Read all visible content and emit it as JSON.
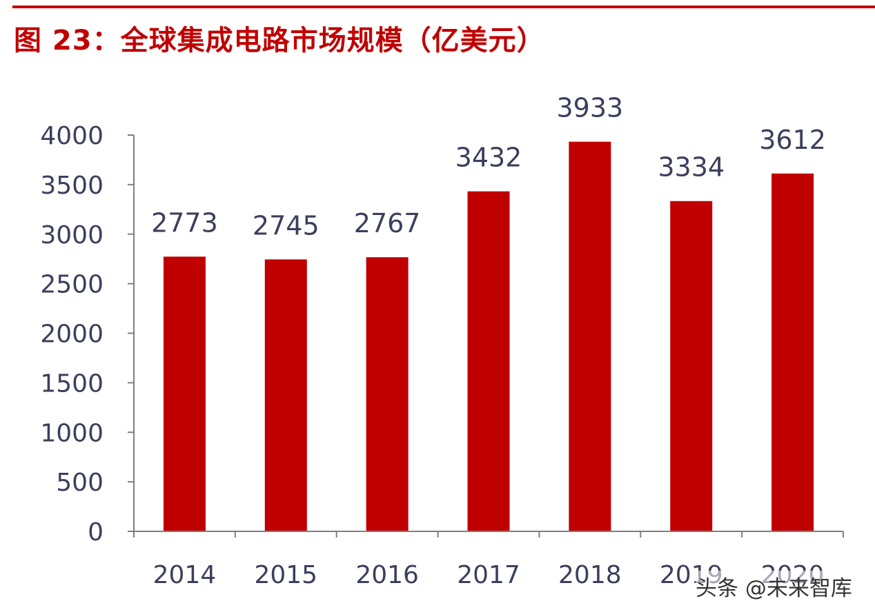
{
  "title": "图 23：全球集成电路市场规模（亿美元）",
  "watermark": "头条 @未来智库",
  "colors": {
    "accent": "#c00000",
    "bar": "#c00000",
    "axis_text": "#3b3f5c",
    "axis_line": "#7f7f7f"
  },
  "chart_data": {
    "type": "bar",
    "title": "图 23：全球集成电路市场规模（亿美元）",
    "categories": [
      "2014",
      "2015",
      "2016",
      "2017",
      "2018",
      "2019",
      "2020"
    ],
    "values": [
      2773,
      2745,
      2767,
      3432,
      3933,
      3334,
      3612
    ],
    "data_labels": [
      "2773",
      "2745",
      "2767",
      "3432",
      "3933",
      "3334",
      "3612"
    ],
    "ylim": [
      0,
      4000
    ],
    "yticks": [
      0,
      500,
      1000,
      1500,
      2000,
      2500,
      3000,
      3500,
      4000
    ],
    "xlabel": "",
    "ylabel": "",
    "grid": false,
    "legend": "none"
  }
}
